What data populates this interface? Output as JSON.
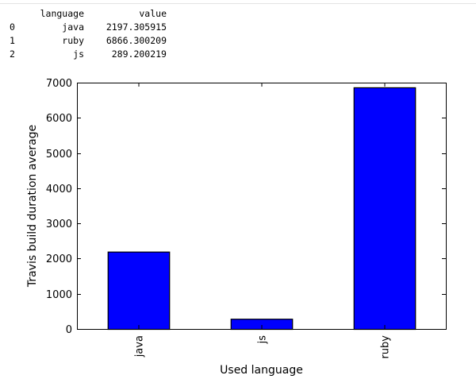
{
  "dataframe": {
    "columns": [
      "language",
      "value"
    ],
    "rows": [
      {
        "index": "0",
        "language": "java",
        "value": "2197.305915"
      },
      {
        "index": "1",
        "language": "ruby",
        "value": "6866.300209"
      },
      {
        "index": "2",
        "language": "js",
        "value": "289.200219"
      }
    ]
  },
  "chart_data": {
    "type": "bar",
    "categories": [
      "java",
      "js",
      "ruby"
    ],
    "values": [
      2197.305915,
      289.200219,
      6866.300209
    ],
    "title": "",
    "xlabel": "Used language",
    "ylabel": "Travis build duration average",
    "ylim": [
      0,
      7000
    ],
    "yticks": [
      0,
      1000,
      2000,
      3000,
      4000,
      5000,
      6000,
      7000
    ],
    "grid": false,
    "bar_color": "#0000ff",
    "edge_color": "#000000"
  }
}
